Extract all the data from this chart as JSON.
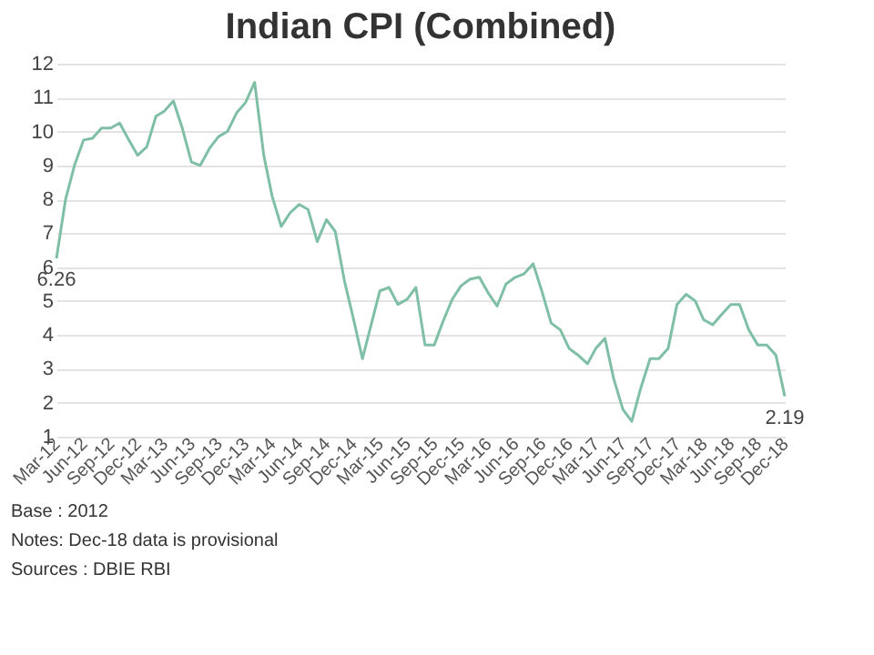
{
  "chart_data": {
    "type": "line",
    "title": "Indian CPI (Combined)",
    "x": [
      "2012-03",
      "2012-04",
      "2012-05",
      "2012-06",
      "2012-07",
      "2012-08",
      "2012-09",
      "2012-10",
      "2012-11",
      "2012-12",
      "2013-01",
      "2013-02",
      "2013-03",
      "2013-04",
      "2013-05",
      "2013-06",
      "2013-07",
      "2013-08",
      "2013-09",
      "2013-10",
      "2013-11",
      "2013-12",
      "2014-01",
      "2014-02",
      "2014-03",
      "2014-04",
      "2014-05",
      "2014-06",
      "2014-07",
      "2014-08",
      "2014-09",
      "2014-10",
      "2014-11",
      "2014-12",
      "2015-01",
      "2015-02",
      "2015-03",
      "2015-04",
      "2015-05",
      "2015-06",
      "2015-07",
      "2015-08",
      "2015-09",
      "2015-10",
      "2015-11",
      "2015-12",
      "2016-01",
      "2016-02",
      "2016-03",
      "2016-04",
      "2016-05",
      "2016-06",
      "2016-07",
      "2016-08",
      "2016-09",
      "2016-10",
      "2016-11",
      "2016-12",
      "2017-01",
      "2017-02",
      "2017-03",
      "2017-04",
      "2017-05",
      "2017-06",
      "2017-07",
      "2017-08",
      "2017-09",
      "2017-10",
      "2017-11",
      "2017-12",
      "2018-01",
      "2018-02",
      "2018-03",
      "2018-04",
      "2018-05",
      "2018-06",
      "2018-07",
      "2018-08",
      "2018-09",
      "2018-10",
      "2018-11",
      "2018-12"
    ],
    "series": [
      {
        "color": "#7fbfa6",
        "values": [
          6.26,
          8.0,
          9.0,
          9.75,
          9.8,
          10.1,
          10.1,
          10.25,
          9.75,
          9.3,
          9.55,
          10.45,
          10.6,
          10.9,
          10.1,
          9.1,
          9.0,
          9.5,
          9.85,
          10.0,
          10.55,
          10.85,
          11.45,
          9.3,
          8.1,
          7.2,
          7.6,
          7.85,
          7.7,
          6.75,
          7.4,
          7.05,
          5.6,
          4.5,
          3.3,
          4.35,
          5.3,
          5.4,
          4.9,
          5.05,
          5.4,
          3.7,
          3.7,
          4.4,
          5.05,
          5.45,
          5.65,
          5.7,
          5.25,
          4.85,
          5.5,
          5.7,
          5.8,
          6.1,
          5.25,
          4.35,
          4.15,
          3.6,
          3.4,
          3.15,
          3.6,
          3.9,
          2.7,
          1.8,
          1.45,
          2.45,
          3.3,
          3.3,
          3.6,
          4.9,
          5.2,
          5.0,
          4.45,
          4.3,
          4.6,
          4.9,
          4.9,
          4.15,
          3.7,
          3.7,
          3.4,
          2.19
        ],
        "value_labels": [
          "6.26",
          null,
          null,
          null,
          null,
          null,
          null,
          null,
          null,
          null,
          null,
          null,
          null,
          null,
          null,
          null,
          null,
          null,
          null,
          null,
          null,
          null,
          null,
          null,
          null,
          null,
          null,
          null,
          null,
          null,
          null,
          null,
          null,
          null,
          null,
          null,
          null,
          null,
          null,
          null,
          null,
          null,
          null,
          null,
          null,
          null,
          null,
          null,
          null,
          null,
          null,
          null,
          null,
          null,
          null,
          null,
          null,
          null,
          null,
          null,
          null,
          null,
          null,
          null,
          null,
          null,
          null,
          null,
          null,
          null,
          null,
          null,
          null,
          null,
          null,
          null,
          null,
          null,
          null,
          null,
          null,
          "2.19"
        ]
      }
    ],
    "xlim": [
      "2012-03",
      "2018-12"
    ],
    "xticks": [
      {
        "value": "2012-03",
        "label": "Mar-12"
      },
      {
        "value": "2012-06",
        "label": "Jun-12"
      },
      {
        "value": "2012-09",
        "label": "Sep-12"
      },
      {
        "value": "2012-12",
        "label": "Dec-12"
      },
      {
        "value": "2013-03",
        "label": "Mar-13"
      },
      {
        "value": "2013-06",
        "label": "Jun-13"
      },
      {
        "value": "2013-09",
        "label": "Sep-13"
      },
      {
        "value": "2013-12",
        "label": "Dec-13"
      },
      {
        "value": "2014-03",
        "label": "Mar-14"
      },
      {
        "value": "2014-06",
        "label": "Jun-14"
      },
      {
        "value": "2014-09",
        "label": "Sep-14"
      },
      {
        "value": "2014-12",
        "label": "Dec-14"
      },
      {
        "value": "2015-03",
        "label": "Mar-15"
      },
      {
        "value": "2015-06",
        "label": "Jun-15"
      },
      {
        "value": "2015-09",
        "label": "Sep-15"
      },
      {
        "value": "2015-12",
        "label": "Dec-15"
      },
      {
        "value": "2016-03",
        "label": "Mar-16"
      },
      {
        "value": "2016-06",
        "label": "Jun-16"
      },
      {
        "value": "2016-09",
        "label": "Sep-16"
      },
      {
        "value": "2016-12",
        "label": "Dec-16"
      },
      {
        "value": "2017-03",
        "label": "Mar-17"
      },
      {
        "value": "2017-06",
        "label": "Jun-17"
      },
      {
        "value": "2017-09",
        "label": "Sep-17"
      },
      {
        "value": "2017-12",
        "label": "Dec-17"
      },
      {
        "value": "2018-03",
        "label": "Mar-18"
      },
      {
        "value": "2018-06",
        "label": "Jun-18"
      },
      {
        "value": "2018-09",
        "label": "Sep-18"
      },
      {
        "value": "2018-12",
        "label": "Dec-18"
      }
    ],
    "ylim": [
      1,
      12
    ],
    "yticks": [
      1,
      2,
      3,
      4,
      5,
      6,
      7,
      8,
      9,
      10,
      11,
      12
    ],
    "grid": "y",
    "annotations": [
      "Base : 2012",
      "Notes: Dec-18 data is provisional",
      "Sources : DBIE RBI"
    ]
  }
}
